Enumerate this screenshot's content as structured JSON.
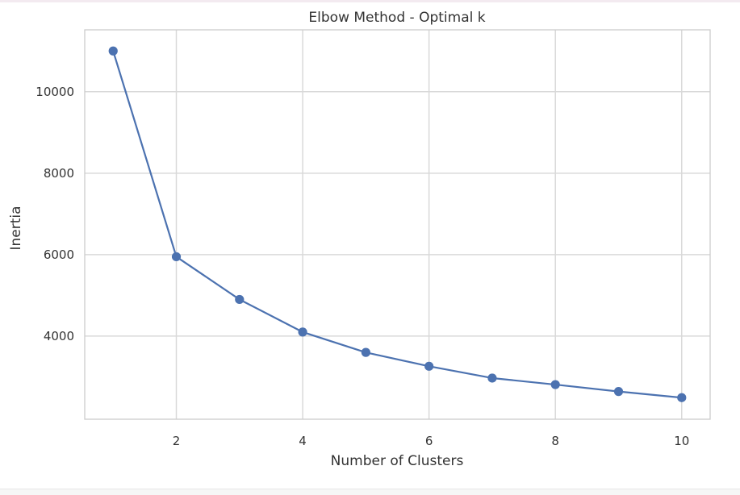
{
  "chart_data": {
    "type": "line",
    "title": "Elbow Method - Optimal k",
    "xlabel": "Number of Clusters",
    "ylabel": "Inertia",
    "x": [
      1,
      2,
      3,
      4,
      5,
      6,
      7,
      8,
      9,
      10
    ],
    "series": [
      {
        "values": [
          11000,
          5950,
          4900,
          4100,
          3600,
          3260,
          2970,
          2810,
          2640,
          2490
        ],
        "color": "#4c72b0",
        "marker": "circle"
      }
    ],
    "xticks": [
      2,
      4,
      6,
      8,
      10
    ],
    "xtick_labels": [
      "2",
      "4",
      "6",
      "8",
      "10"
    ],
    "yticks": [
      4000,
      6000,
      8000,
      10000
    ],
    "ytick_labels": [
      "4000",
      "6000",
      "8000",
      "10000"
    ],
    "xlim": [
      0.55,
      10.45
    ],
    "ylim": [
      1960,
      11520
    ],
    "grid": true,
    "legend": false,
    "colors": {
      "grid": "#d9d9d9",
      "frame": "#cccccc",
      "text": "#333333",
      "line": "#4c72b0"
    }
  }
}
